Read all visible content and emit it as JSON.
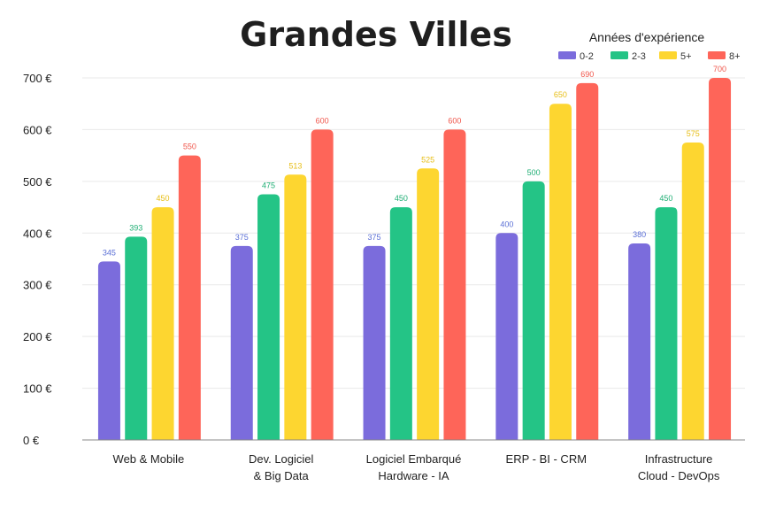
{
  "chart_data": {
    "type": "bar",
    "title": "Grandes Villes",
    "legend_title": "Années d'expérience",
    "legend_position": "top-right",
    "categories": [
      [
        "Web & Mobile"
      ],
      [
        "Dev. Logiciel",
        "& Big Data"
      ],
      [
        "Logiciel Embarqué",
        "Hardware - IA"
      ],
      [
        "ERP - BI - CRM"
      ],
      [
        "Infrastructure",
        "Cloud - DevOps"
      ]
    ],
    "series": [
      {
        "name": "0-2",
        "color": "#7b6cdc",
        "label_color": "#5a6fd6",
        "values": [
          345,
          375,
          375,
          400,
          380
        ]
      },
      {
        "name": "2-3",
        "color": "#24c486",
        "label_color": "#1fae74",
        "values": [
          393,
          475,
          450,
          500,
          450
        ]
      },
      {
        "name": "5+",
        "color": "#fdd630",
        "label_color": "#e7be16",
        "values": [
          450,
          513,
          525,
          650,
          575
        ]
      },
      {
        "name": "8+",
        "color": "#fe6559",
        "label_color": "#f0564b",
        "values": [
          550,
          600,
          600,
          690,
          700
        ]
      }
    ],
    "ylim": [
      0,
      700
    ],
    "yticks": [
      0,
      100,
      200,
      300,
      400,
      500,
      600,
      700
    ],
    "ytick_suffix": " €",
    "grid": true
  }
}
